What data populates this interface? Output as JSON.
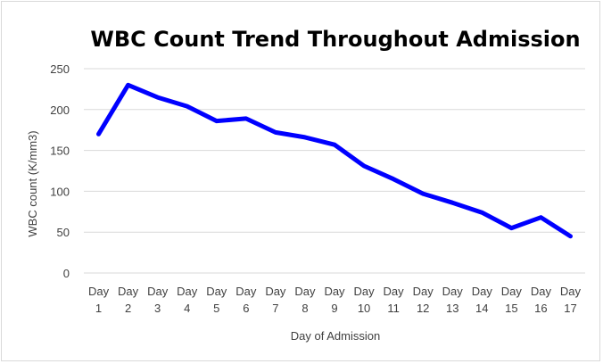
{
  "chart_data": {
    "type": "line",
    "title": "WBC Count Trend Throughout Admission",
    "xlabel": "Day of Admission",
    "ylabel": "WBC count (K/mm3)",
    "categories": [
      [
        "Day",
        "1"
      ],
      [
        "Day",
        "2"
      ],
      [
        "Day",
        "3"
      ],
      [
        "Day",
        "4"
      ],
      [
        "Day",
        "5"
      ],
      [
        "Day",
        "6"
      ],
      [
        "Day",
        "7"
      ],
      [
        "Day",
        "8"
      ],
      [
        "Day",
        "9"
      ],
      [
        "Day",
        "10"
      ],
      [
        "Day",
        "11"
      ],
      [
        "Day",
        "12"
      ],
      [
        "Day",
        "13"
      ],
      [
        "Day",
        "14"
      ],
      [
        "Day",
        "15"
      ],
      [
        "Day",
        "16"
      ],
      [
        "Day",
        "17"
      ]
    ],
    "series": [
      {
        "values": [
          170,
          230,
          215,
          204,
          186,
          189,
          172,
          166,
          157,
          131,
          115,
          97,
          86,
          74,
          55,
          68,
          45
        ]
      }
    ],
    "ylim": [
      0,
      250
    ],
    "yticks": [
      0,
      50,
      100,
      150,
      200,
      250
    ],
    "grid": true,
    "legend": "none",
    "line_color": "#0000ff"
  }
}
